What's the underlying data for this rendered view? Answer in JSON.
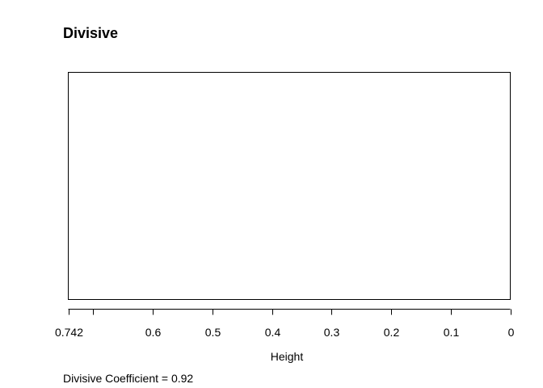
{
  "chart_data": {
    "type": "dendrogram",
    "title": "Divisive",
    "xlabel": "Height",
    "ylabel": "",
    "orientation": "horizontal",
    "x_reversed": true,
    "xlim": [
      0.742,
      0
    ],
    "ticks": [
      0.742,
      0.7,
      0.6,
      0.5,
      0.4,
      0.3,
      0.2,
      0.1,
      0
    ],
    "tick_labels": [
      "0.742",
      "",
      "0.6",
      "0.5",
      "0.4",
      "0.3",
      "0.2",
      "0.1",
      "0"
    ],
    "series": [],
    "grid": false,
    "legend": "none"
  },
  "footer": {
    "coefficient_label": "Divisive Coefficient =  0.92"
  }
}
